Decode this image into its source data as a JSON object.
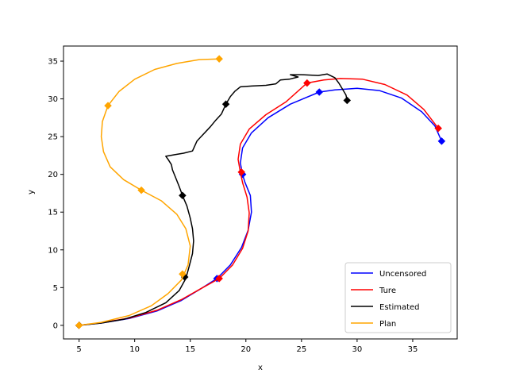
{
  "chart_data": {
    "type": "line",
    "title": "",
    "xlabel": "x",
    "ylabel": "y",
    "xlim": [
      3.6,
      39.0
    ],
    "ylim": [
      -1.8,
      37.0
    ],
    "xticks": [
      5,
      10,
      15,
      20,
      25,
      30,
      35
    ],
    "yticks": [
      0,
      5,
      10,
      15,
      20,
      25,
      30,
      35
    ],
    "grid": false,
    "legend_position": "lower right",
    "series": [
      {
        "name": "Uncensored",
        "color": "#0000ff",
        "line": [
          [
            5.0,
            0.0
          ],
          [
            7.0,
            0.3
          ],
          [
            9.5,
            0.9
          ],
          [
            12.0,
            1.9
          ],
          [
            14.2,
            3.3
          ],
          [
            16.0,
            4.9
          ],
          [
            17.4,
            6.2
          ],
          [
            18.6,
            8.0
          ],
          [
            19.6,
            10.3
          ],
          [
            20.2,
            12.6
          ],
          [
            20.5,
            15.0
          ],
          [
            20.4,
            17.2
          ],
          [
            19.9,
            19.0
          ],
          [
            19.7,
            20.0
          ],
          [
            19.5,
            21.5
          ],
          [
            19.7,
            23.5
          ],
          [
            20.5,
            25.5
          ],
          [
            22.0,
            27.5
          ],
          [
            24.0,
            29.3
          ],
          [
            26.6,
            30.9
          ],
          [
            28.0,
            31.2
          ],
          [
            30.0,
            31.4
          ],
          [
            32.0,
            31.1
          ],
          [
            34.0,
            30.1
          ],
          [
            35.8,
            28.3
          ],
          [
            37.0,
            26.4
          ],
          [
            37.6,
            24.4
          ]
        ],
        "markers": [
          [
            5.0,
            0.0
          ],
          [
            17.4,
            6.2
          ],
          [
            19.7,
            20.0
          ],
          [
            26.6,
            30.9
          ],
          [
            37.6,
            24.4
          ]
        ]
      },
      {
        "name": "Ture",
        "color": "#ff0000",
        "line": [
          [
            5.0,
            0.0
          ],
          [
            7.0,
            0.35
          ],
          [
            9.5,
            0.95
          ],
          [
            12.0,
            2.0
          ],
          [
            14.2,
            3.4
          ],
          [
            16.0,
            4.9
          ],
          [
            17.6,
            6.2
          ],
          [
            18.8,
            8.0
          ],
          [
            19.7,
            10.2
          ],
          [
            20.2,
            12.5
          ],
          [
            20.3,
            14.9
          ],
          [
            20.1,
            17.0
          ],
          [
            19.7,
            18.9
          ],
          [
            19.5,
            20.3
          ],
          [
            19.3,
            22.0
          ],
          [
            19.5,
            24.0
          ],
          [
            20.3,
            26.0
          ],
          [
            21.8,
            27.9
          ],
          [
            23.6,
            29.6
          ],
          [
            25.5,
            32.1
          ],
          [
            27.0,
            32.5
          ],
          [
            28.5,
            32.7
          ],
          [
            30.5,
            32.6
          ],
          [
            32.5,
            31.9
          ],
          [
            34.5,
            30.5
          ],
          [
            36.0,
            28.6
          ],
          [
            37.3,
            26.1
          ]
        ],
        "markers": [
          [
            5.0,
            0.0
          ],
          [
            17.6,
            6.2
          ],
          [
            19.6,
            20.3
          ],
          [
            25.5,
            32.1
          ],
          [
            37.3,
            26.1
          ]
        ]
      },
      {
        "name": "Estimated",
        "color": "#000000",
        "line": [
          [
            5.0,
            0.0
          ],
          [
            7.0,
            0.3
          ],
          [
            9.0,
            0.8
          ],
          [
            11.0,
            1.7
          ],
          [
            12.8,
            3.0
          ],
          [
            14.0,
            4.6
          ],
          [
            14.6,
            6.2
          ],
          [
            14.9,
            7.8
          ],
          [
            15.2,
            9.5
          ],
          [
            15.3,
            11.2
          ],
          [
            15.2,
            12.8
          ],
          [
            15.0,
            14.2
          ],
          [
            14.7,
            15.8
          ],
          [
            14.3,
            17.2
          ],
          [
            14.0,
            18.4
          ],
          [
            13.7,
            19.5
          ],
          [
            13.4,
            20.6
          ],
          [
            13.3,
            21.3
          ],
          [
            13.0,
            22.0
          ],
          [
            12.8,
            22.4
          ],
          [
            13.6,
            22.6
          ],
          [
            14.4,
            22.8
          ],
          [
            15.2,
            23.1
          ],
          [
            15.6,
            24.4
          ],
          [
            16.1,
            25.2
          ],
          [
            16.8,
            26.3
          ],
          [
            17.3,
            27.2
          ],
          [
            17.8,
            28.0
          ],
          [
            18.2,
            29.3
          ],
          [
            18.6,
            30.3
          ],
          [
            19.0,
            31.0
          ],
          [
            19.5,
            31.6
          ],
          [
            20.5,
            31.7
          ],
          [
            21.8,
            31.8
          ],
          [
            22.7,
            32.0
          ],
          [
            23.1,
            32.5
          ],
          [
            23.9,
            32.6
          ],
          [
            24.7,
            32.9
          ],
          [
            24.0,
            33.2
          ],
          [
            25.0,
            33.2
          ],
          [
            26.5,
            33.1
          ],
          [
            27.3,
            33.3
          ],
          [
            28.0,
            32.8
          ],
          [
            28.4,
            32.0
          ],
          [
            29.0,
            30.5
          ],
          [
            29.1,
            29.8
          ]
        ],
        "markers": [
          [
            5.0,
            0.0
          ],
          [
            14.5,
            6.4
          ],
          [
            14.3,
            17.2
          ],
          [
            18.2,
            29.3
          ],
          [
            29.1,
            29.8
          ]
        ]
      },
      {
        "name": "Plan",
        "color": "#ffa500",
        "line": [
          [
            5.0,
            0.0
          ],
          [
            7.0,
            0.4
          ],
          [
            9.5,
            1.3
          ],
          [
            11.5,
            2.6
          ],
          [
            13.0,
            4.2
          ],
          [
            14.2,
            6.0
          ],
          [
            14.8,
            8.0
          ],
          [
            15.0,
            10.5
          ],
          [
            14.6,
            12.8
          ],
          [
            13.8,
            14.7
          ],
          [
            12.4,
            16.5
          ],
          [
            10.6,
            17.9
          ],
          [
            9.0,
            19.3
          ],
          [
            7.8,
            21.0
          ],
          [
            7.2,
            23.0
          ],
          [
            7.0,
            25.0
          ],
          [
            7.1,
            27.0
          ],
          [
            7.6,
            29.1
          ],
          [
            8.6,
            31.0
          ],
          [
            10.0,
            32.6
          ],
          [
            11.8,
            33.9
          ],
          [
            13.8,
            34.7
          ],
          [
            15.8,
            35.2
          ],
          [
            17.6,
            35.3
          ]
        ],
        "markers": [
          [
            5.0,
            0.0
          ],
          [
            14.3,
            6.8
          ],
          [
            10.6,
            17.9
          ],
          [
            7.6,
            29.1
          ],
          [
            17.6,
            35.3
          ]
        ]
      }
    ]
  }
}
